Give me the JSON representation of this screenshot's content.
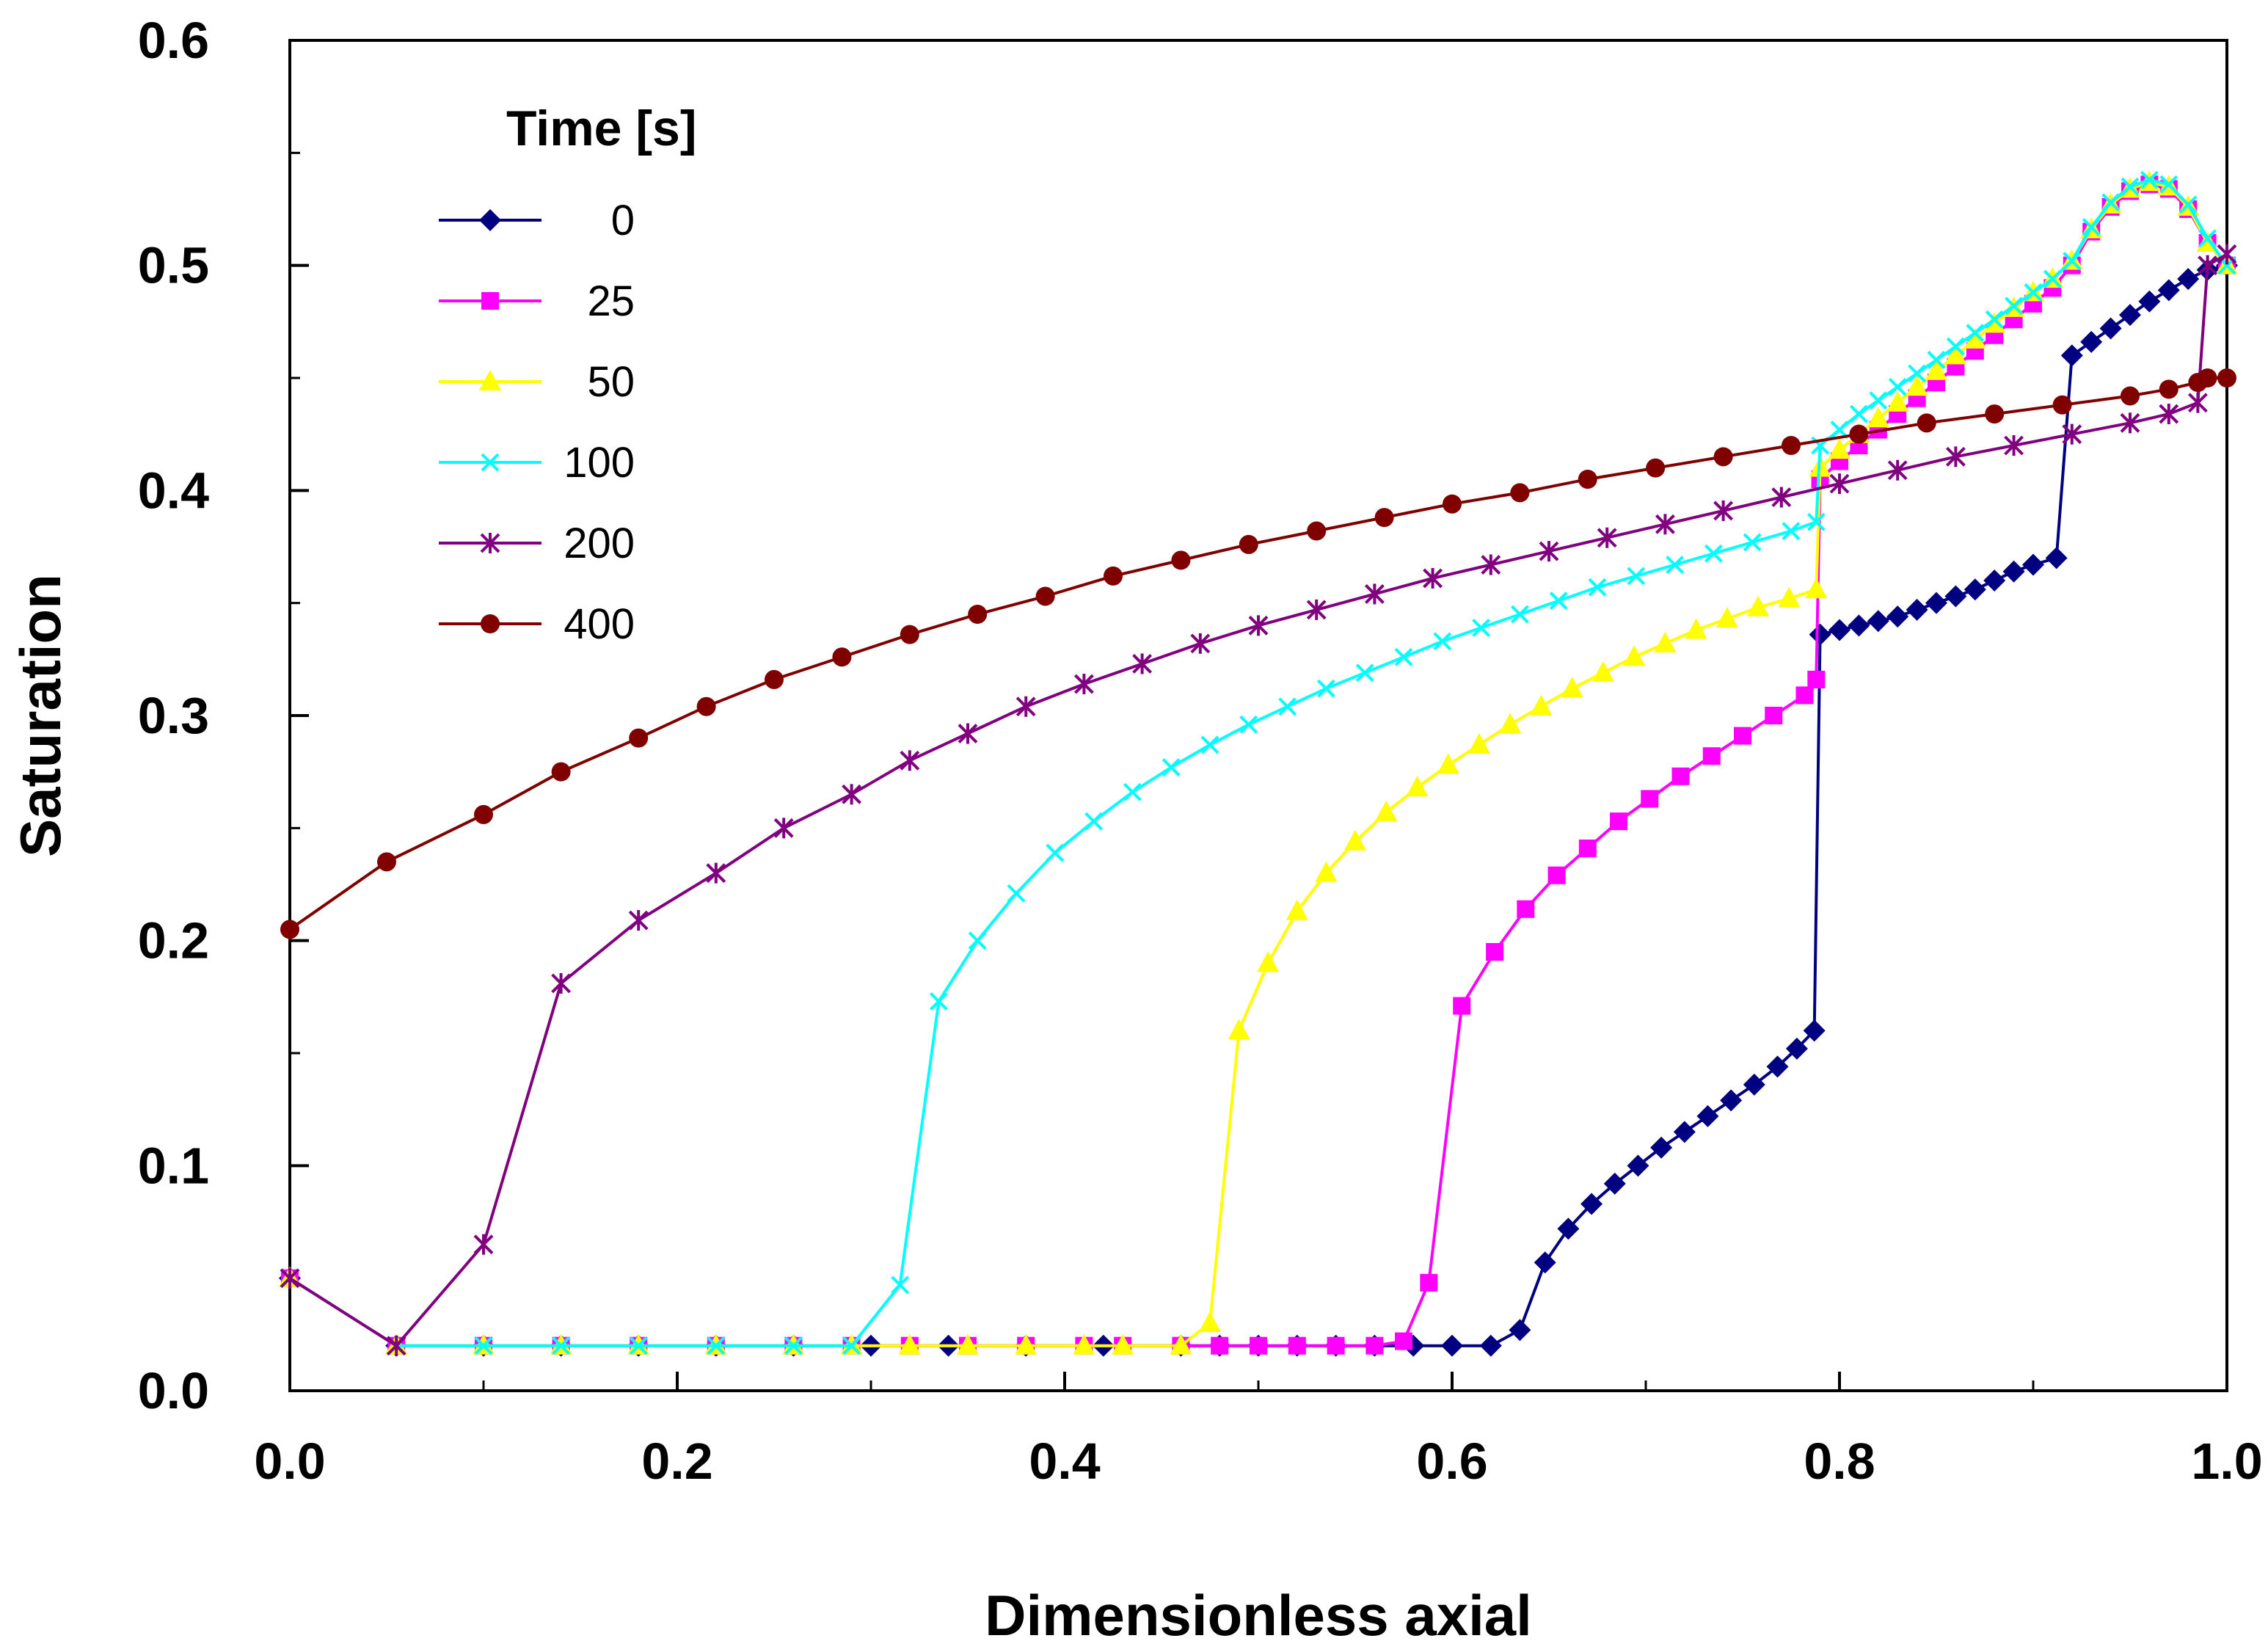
{
  "chart_data": {
    "type": "line",
    "title": "",
    "xlabel": "Dimensionless axial",
    "ylabel": "Saturation",
    "xlim": [
      0,
      1
    ],
    "ylim": [
      0,
      0.6
    ],
    "xticks": [
      0,
      0.2,
      0.4,
      0.6,
      0.8,
      1.0
    ],
    "xtick_labels": [
      "0.0",
      "0.2",
      "0.4",
      "0.6",
      "0.8",
      "1.0"
    ],
    "yticks": [
      0,
      0.1,
      0.2,
      0.3,
      0.4,
      0.5,
      0.6
    ],
    "ytick_labels": [
      "0.0",
      "0.1",
      "0.2",
      "0.3",
      "0.4",
      "0.5",
      "0.6"
    ],
    "grid": false,
    "legend_title": "Time [s]",
    "legend_position": "top-left",
    "series": [
      {
        "name": "0",
        "color": "#000080",
        "marker": "diamond",
        "points": [
          [
            0,
            0.05
          ],
          [
            0.055,
            0.02
          ],
          [
            0.1,
            0.02
          ],
          [
            0.14,
            0.02
          ],
          [
            0.18,
            0.02
          ],
          [
            0.22,
            0.02
          ],
          [
            0.26,
            0.02
          ],
          [
            0.3,
            0.02
          ],
          [
            0.34,
            0.02
          ],
          [
            0.38,
            0.02
          ],
          [
            0.42,
            0.02
          ],
          [
            0.46,
            0.02
          ],
          [
            0.48,
            0.02
          ],
          [
            0.5,
            0.02
          ],
          [
            0.52,
            0.02
          ],
          [
            0.54,
            0.02
          ],
          [
            0.56,
            0.02
          ],
          [
            0.58,
            0.02
          ],
          [
            0.6,
            0.02
          ],
          [
            0.62,
            0.02
          ],
          [
            0.635,
            0.027
          ],
          [
            0.648,
            0.057
          ],
          [
            0.66,
            0.072
          ],
          [
            0.672,
            0.083
          ],
          [
            0.684,
            0.092
          ],
          [
            0.696,
            0.1
          ],
          [
            0.708,
            0.108
          ],
          [
            0.72,
            0.115
          ],
          [
            0.732,
            0.122
          ],
          [
            0.744,
            0.129
          ],
          [
            0.756,
            0.136
          ],
          [
            0.768,
            0.144
          ],
          [
            0.778,
            0.152
          ],
          [
            0.787,
            0.16
          ],
          [
            0.79,
            0.336
          ],
          [
            0.8,
            0.338
          ],
          [
            0.81,
            0.34
          ],
          [
            0.82,
            0.342
          ],
          [
            0.83,
            0.344
          ],
          [
            0.84,
            0.347
          ],
          [
            0.85,
            0.35
          ],
          [
            0.86,
            0.353
          ],
          [
            0.87,
            0.356
          ],
          [
            0.88,
            0.36
          ],
          [
            0.89,
            0.364
          ],
          [
            0.9,
            0.367
          ],
          [
            0.912,
            0.37
          ],
          [
            0.92,
            0.46
          ],
          [
            0.93,
            0.466
          ],
          [
            0.94,
            0.472
          ],
          [
            0.95,
            0.478
          ],
          [
            0.96,
            0.484
          ],
          [
            0.97,
            0.489
          ],
          [
            0.98,
            0.494
          ],
          [
            0.99,
            0.498
          ],
          [
            1.0,
            0.5
          ]
        ]
      },
      {
        "name": "25",
        "color": "#ff00ff",
        "marker": "square",
        "points": [
          [
            0,
            0.05
          ],
          [
            0.055,
            0.02
          ],
          [
            0.1,
            0.02
          ],
          [
            0.14,
            0.02
          ],
          [
            0.18,
            0.02
          ],
          [
            0.22,
            0.02
          ],
          [
            0.26,
            0.02
          ],
          [
            0.29,
            0.02
          ],
          [
            0.32,
            0.02
          ],
          [
            0.35,
            0.02
          ],
          [
            0.38,
            0.02
          ],
          [
            0.41,
            0.02
          ],
          [
            0.43,
            0.02
          ],
          [
            0.46,
            0.02
          ],
          [
            0.48,
            0.02
          ],
          [
            0.5,
            0.02
          ],
          [
            0.52,
            0.02
          ],
          [
            0.54,
            0.02
          ],
          [
            0.56,
            0.02
          ],
          [
            0.575,
            0.022
          ],
          [
            0.588,
            0.048
          ],
          [
            0.605,
            0.171
          ],
          [
            0.622,
            0.195
          ],
          [
            0.638,
            0.214
          ],
          [
            0.654,
            0.229
          ],
          [
            0.67,
            0.241
          ],
          [
            0.686,
            0.253
          ],
          [
            0.702,
            0.263
          ],
          [
            0.718,
            0.273
          ],
          [
            0.734,
            0.282
          ],
          [
            0.75,
            0.291
          ],
          [
            0.766,
            0.3
          ],
          [
            0.782,
            0.309
          ],
          [
            0.788,
            0.316
          ],
          [
            0.79,
            0.405
          ],
          [
            0.8,
            0.413
          ],
          [
            0.81,
            0.42
          ],
          [
            0.82,
            0.427
          ],
          [
            0.83,
            0.434
          ],
          [
            0.84,
            0.441
          ],
          [
            0.85,
            0.448
          ],
          [
            0.86,
            0.455
          ],
          [
            0.87,
            0.462
          ],
          [
            0.88,
            0.469
          ],
          [
            0.89,
            0.476
          ],
          [
            0.9,
            0.483
          ],
          [
            0.91,
            0.49
          ],
          [
            0.92,
            0.5
          ],
          [
            0.93,
            0.515
          ],
          [
            0.94,
            0.526
          ],
          [
            0.95,
            0.533
          ],
          [
            0.96,
            0.536
          ],
          [
            0.97,
            0.534
          ],
          [
            0.98,
            0.525
          ],
          [
            0.99,
            0.51
          ],
          [
            1.0,
            0.5
          ]
        ]
      },
      {
        "name": "50",
        "color": "#ffff00",
        "marker": "triangle",
        "points": [
          [
            0,
            0.05
          ],
          [
            0.055,
            0.02
          ],
          [
            0.1,
            0.02
          ],
          [
            0.14,
            0.02
          ],
          [
            0.18,
            0.02
          ],
          [
            0.22,
            0.02
          ],
          [
            0.26,
            0.02
          ],
          [
            0.29,
            0.02
          ],
          [
            0.32,
            0.02
          ],
          [
            0.35,
            0.02
          ],
          [
            0.38,
            0.02
          ],
          [
            0.41,
            0.02
          ],
          [
            0.43,
            0.02
          ],
          [
            0.46,
            0.02
          ],
          [
            0.475,
            0.03
          ],
          [
            0.49,
            0.16
          ],
          [
            0.505,
            0.19
          ],
          [
            0.52,
            0.213
          ],
          [
            0.535,
            0.23
          ],
          [
            0.55,
            0.244
          ],
          [
            0.566,
            0.257
          ],
          [
            0.582,
            0.268
          ],
          [
            0.598,
            0.278
          ],
          [
            0.614,
            0.287
          ],
          [
            0.63,
            0.296
          ],
          [
            0.646,
            0.304
          ],
          [
            0.662,
            0.312
          ],
          [
            0.678,
            0.319
          ],
          [
            0.694,
            0.326
          ],
          [
            0.71,
            0.332
          ],
          [
            0.726,
            0.338
          ],
          [
            0.742,
            0.343
          ],
          [
            0.758,
            0.348
          ],
          [
            0.774,
            0.352
          ],
          [
            0.788,
            0.356
          ],
          [
            0.79,
            0.41
          ],
          [
            0.8,
            0.418
          ],
          [
            0.81,
            0.425
          ],
          [
            0.82,
            0.432
          ],
          [
            0.83,
            0.439
          ],
          [
            0.84,
            0.446
          ],
          [
            0.85,
            0.453
          ],
          [
            0.86,
            0.46
          ],
          [
            0.87,
            0.467
          ],
          [
            0.88,
            0.474
          ],
          [
            0.89,
            0.481
          ],
          [
            0.9,
            0.488
          ],
          [
            0.91,
            0.494
          ],
          [
            0.92,
            0.502
          ],
          [
            0.93,
            0.516
          ],
          [
            0.94,
            0.527
          ],
          [
            0.95,
            0.534
          ],
          [
            0.96,
            0.537
          ],
          [
            0.97,
            0.535
          ],
          [
            0.98,
            0.526
          ],
          [
            0.99,
            0.51
          ],
          [
            1.0,
            0.5
          ]
        ]
      },
      {
        "name": "100",
        "color": "#00ffff",
        "marker": "x",
        "points": [
          [
            0,
            0.05
          ],
          [
            0.055,
            0.02
          ],
          [
            0.1,
            0.02
          ],
          [
            0.14,
            0.02
          ],
          [
            0.18,
            0.02
          ],
          [
            0.22,
            0.02
          ],
          [
            0.26,
            0.02
          ],
          [
            0.29,
            0.02
          ],
          [
            0.315,
            0.047
          ],
          [
            0.335,
            0.173
          ],
          [
            0.355,
            0.2
          ],
          [
            0.375,
            0.221
          ],
          [
            0.395,
            0.239
          ],
          [
            0.415,
            0.253
          ],
          [
            0.435,
            0.266
          ],
          [
            0.455,
            0.277
          ],
          [
            0.475,
            0.287
          ],
          [
            0.495,
            0.296
          ],
          [
            0.515,
            0.304
          ],
          [
            0.535,
            0.312
          ],
          [
            0.555,
            0.319
          ],
          [
            0.575,
            0.326
          ],
          [
            0.595,
            0.333
          ],
          [
            0.615,
            0.339
          ],
          [
            0.635,
            0.345
          ],
          [
            0.655,
            0.351
          ],
          [
            0.675,
            0.357
          ],
          [
            0.695,
            0.362
          ],
          [
            0.715,
            0.367
          ],
          [
            0.735,
            0.372
          ],
          [
            0.755,
            0.377
          ],
          [
            0.775,
            0.382
          ],
          [
            0.788,
            0.386
          ],
          [
            0.79,
            0.42
          ],
          [
            0.8,
            0.427
          ],
          [
            0.81,
            0.434
          ],
          [
            0.82,
            0.44
          ],
          [
            0.83,
            0.446
          ],
          [
            0.84,
            0.452
          ],
          [
            0.85,
            0.458
          ],
          [
            0.86,
            0.464
          ],
          [
            0.87,
            0.47
          ],
          [
            0.88,
            0.476
          ],
          [
            0.89,
            0.482
          ],
          [
            0.9,
            0.488
          ],
          [
            0.91,
            0.494
          ],
          [
            0.92,
            0.502
          ],
          [
            0.93,
            0.517
          ],
          [
            0.94,
            0.528
          ],
          [
            0.95,
            0.535
          ],
          [
            0.96,
            0.538
          ],
          [
            0.97,
            0.536
          ],
          [
            0.98,
            0.527
          ],
          [
            0.99,
            0.512
          ],
          [
            1.0,
            0.5
          ]
        ]
      },
      {
        "name": "200",
        "color": "#800080",
        "marker": "star",
        "points": [
          [
            0,
            0.05
          ],
          [
            0.055,
            0.02
          ],
          [
            0.1,
            0.065
          ],
          [
            0.14,
            0.181
          ],
          [
            0.18,
            0.209
          ],
          [
            0.22,
            0.23
          ],
          [
            0.255,
            0.25
          ],
          [
            0.29,
            0.265
          ],
          [
            0.32,
            0.28
          ],
          [
            0.35,
            0.292
          ],
          [
            0.38,
            0.304
          ],
          [
            0.41,
            0.314
          ],
          [
            0.44,
            0.323
          ],
          [
            0.47,
            0.332
          ],
          [
            0.5,
            0.34
          ],
          [
            0.53,
            0.347
          ],
          [
            0.56,
            0.354
          ],
          [
            0.59,
            0.361
          ],
          [
            0.62,
            0.367
          ],
          [
            0.65,
            0.373
          ],
          [
            0.68,
            0.379
          ],
          [
            0.71,
            0.385
          ],
          [
            0.74,
            0.391
          ],
          [
            0.77,
            0.397
          ],
          [
            0.8,
            0.403
          ],
          [
            0.83,
            0.409
          ],
          [
            0.86,
            0.415
          ],
          [
            0.89,
            0.42
          ],
          [
            0.92,
            0.425
          ],
          [
            0.95,
            0.43
          ],
          [
            0.97,
            0.434
          ],
          [
            0.985,
            0.439
          ],
          [
            0.99,
            0.5
          ],
          [
            1.0,
            0.505
          ]
        ]
      },
      {
        "name": "400",
        "color": "#800000",
        "marker": "circle",
        "points": [
          [
            0,
            0.205
          ],
          [
            0.05,
            0.235
          ],
          [
            0.1,
            0.256
          ],
          [
            0.14,
            0.275
          ],
          [
            0.18,
            0.29
          ],
          [
            0.215,
            0.304
          ],
          [
            0.25,
            0.316
          ],
          [
            0.285,
            0.326
          ],
          [
            0.32,
            0.336
          ],
          [
            0.355,
            0.345
          ],
          [
            0.39,
            0.353
          ],
          [
            0.425,
            0.362
          ],
          [
            0.46,
            0.369
          ],
          [
            0.495,
            0.376
          ],
          [
            0.53,
            0.382
          ],
          [
            0.565,
            0.388
          ],
          [
            0.6,
            0.394
          ],
          [
            0.635,
            0.399
          ],
          [
            0.67,
            0.405
          ],
          [
            0.705,
            0.41
          ],
          [
            0.74,
            0.415
          ],
          [
            0.775,
            0.42
          ],
          [
            0.81,
            0.425
          ],
          [
            0.845,
            0.43
          ],
          [
            0.88,
            0.434
          ],
          [
            0.915,
            0.438
          ],
          [
            0.95,
            0.442
          ],
          [
            0.97,
            0.445
          ],
          [
            0.985,
            0.448
          ],
          [
            0.99,
            0.45
          ],
          [
            1.0,
            0.45
          ]
        ]
      }
    ]
  }
}
